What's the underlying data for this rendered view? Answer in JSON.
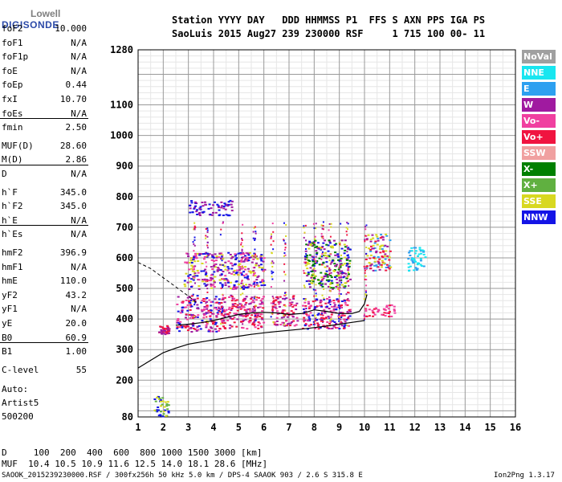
{
  "logo": {
    "line1": "Lowell",
    "line2": "DIGISONDE"
  },
  "header": {
    "line1": "Station YYYY DAY   DDD HHMMSS P1  FFS S AXN PPS IGA PS",
    "line2": "SaoLuis 2015 Aug27 239 230000 RSF     1 715 100 00- 11"
  },
  "params": [
    {
      "name": "foF2",
      "value": "10.000"
    },
    {
      "name": "foF1",
      "value": "N/A"
    },
    {
      "name": "foF1p",
      "value": "N/A"
    },
    {
      "name": "foE",
      "value": "N/A"
    },
    {
      "name": "foEp",
      "value": "0.44"
    },
    {
      "name": "fxI",
      "value": "10.70"
    },
    {
      "name": "foEs",
      "value": "N/A"
    },
    {
      "name": "fmin",
      "value": "2.50"
    },
    {
      "name": "MUF(D)",
      "value": "28.60"
    },
    {
      "name": "M(D)",
      "value": "2.86"
    },
    {
      "name": "D",
      "value": "N/A"
    },
    {
      "name": "h`F",
      "value": "345.0"
    },
    {
      "name": "h`F2",
      "value": "345.0"
    },
    {
      "name": "h`E",
      "value": "N/A"
    },
    {
      "name": "h`Es",
      "value": "N/A"
    },
    {
      "name": "hmF2",
      "value": "396.9"
    },
    {
      "name": "hmF1",
      "value": "N/A"
    },
    {
      "name": "hmE",
      "value": "110.0"
    },
    {
      "name": "yF2",
      "value": "43.2"
    },
    {
      "name": "yF1",
      "value": "N/A"
    },
    {
      "name": "yE",
      "value": "20.0"
    },
    {
      "name": "B0",
      "value": "60.9"
    },
    {
      "name": "B1",
      "value": "1.00"
    },
    {
      "name": "C-level",
      "value": "55"
    }
  ],
  "auto": {
    "line1": "Auto:",
    "line2": "Artist5",
    "line3": "500200"
  },
  "legend": [
    {
      "label": "NoVal",
      "color": "#a0a0a0"
    },
    {
      "label": "NNE",
      "color": "#19e6f0"
    },
    {
      "label": "E",
      "color": "#2da0f0"
    },
    {
      "label": "W",
      "color": "#a01aa0"
    },
    {
      "label": "Vo-",
      "color": "#f040a0"
    },
    {
      "label": "Vo+",
      "color": "#f01440"
    },
    {
      "label": "SSW",
      "color": "#f0a0a0"
    },
    {
      "label": "X-",
      "color": "#008000"
    },
    {
      "label": "X+",
      "color": "#60b040"
    },
    {
      "label": "SSE",
      "color": "#d8d820"
    },
    {
      "label": "NNW",
      "color": "#1414e6"
    }
  ],
  "bottom": {
    "dist_row": "D     100  200  400  600  800 1000 1500 3000 [km]",
    "muf_row": "MUF  10.4 10.5 10.9 11.6 12.5 14.0 18.1 28.6 [MHz]",
    "info": "SAOOK_2015239230000.RSF / 300fx256h 50 kHz 5.0 km / DPS-4 SAAOK 903 / 2.6 S 315.8 E",
    "version": "Ion2Png 1.3.17"
  },
  "chart_data": {
    "type": "scatter",
    "x_ticks": [
      1,
      2,
      3,
      4,
      5,
      6,
      7,
      8,
      9,
      10,
      11,
      12,
      13,
      14,
      15,
      16
    ],
    "y_ticks_major": [
      80,
      200,
      300,
      400,
      500,
      600,
      700,
      800,
      900,
      1000,
      1100,
      1280
    ],
    "xlim": [
      1,
      16
    ],
    "ylim": [
      80,
      1280
    ],
    "grid": true,
    "legend_placement": "right",
    "profile_solid": {
      "x": [
        1.0,
        1.5,
        2.0,
        2.5,
        3.0,
        3.5,
        4.0,
        4.5,
        5.0,
        5.5,
        6.0,
        6.5,
        7.0,
        7.5,
        8.0,
        8.5,
        9.0,
        9.5,
        10.0
      ],
      "y": [
        240,
        265,
        290,
        305,
        318,
        325,
        332,
        338,
        344,
        350,
        355,
        359,
        363,
        367,
        372,
        377,
        383,
        389,
        395
      ]
    },
    "profile_dashed": {
      "x": [
        1.0,
        1.5,
        2.0,
        2.5,
        3.0,
        3.3
      ],
      "y": [
        585,
        565,
        535,
        505,
        475,
        455
      ]
    },
    "trace_curve": {
      "x": [
        2.5,
        3.0,
        3.5,
        4.0,
        4.5,
        5.0,
        5.5,
        6.0,
        6.5,
        7.0,
        7.5,
        8.0,
        8.5,
        9.0,
        9.5,
        9.8,
        10.0,
        10.1
      ],
      "y": [
        380,
        383,
        388,
        395,
        405,
        415,
        420,
        422,
        420,
        415,
        418,
        430,
        425,
        418,
        418,
        425,
        450,
        480
      ]
    },
    "clusters": [
      {
        "x": [
          1.8,
          2.2
        ],
        "y": [
          350,
          380
        ],
        "colors": [
          "#f01440",
          "#a01aa0"
        ]
      },
      {
        "x": [
          2.5,
          4.2
        ],
        "y": [
          360,
          480
        ],
        "colors": [
          "#f01440",
          "#f040a0",
          "#a01aa0",
          "#1414e6"
        ]
      },
      {
        "x": [
          4.2,
          6.0
        ],
        "y": [
          370,
          480
        ],
        "colors": [
          "#f01440",
          "#f040a0",
          "#a01aa0"
        ]
      },
      {
        "x": [
          6.3,
          7.3
        ],
        "y": [
          380,
          480
        ],
        "colors": [
          "#f01440",
          "#f040a0",
          "#a01aa0"
        ]
      },
      {
        "x": [
          7.5,
          9.4
        ],
        "y": [
          370,
          470
        ],
        "colors": [
          "#f01440",
          "#f040a0",
          "#a01aa0",
          "#1414e6"
        ]
      },
      {
        "x": [
          2.8,
          6.0
        ],
        "y": [
          500,
          620
        ],
        "colors": [
          "#a01aa0",
          "#d8d820",
          "#1414e6",
          "#f040a0"
        ]
      },
      {
        "x": [
          7.6,
          9.4
        ],
        "y": [
          500,
          660
        ],
        "colors": [
          "#a01aa0",
          "#d8d820",
          "#1414e6",
          "#008000"
        ]
      },
      {
        "x": [
          10.0,
          11.0
        ],
        "y": [
          560,
          680
        ],
        "colors": [
          "#d8d820",
          "#a01aa0",
          "#f01440",
          "#2da0f0"
        ]
      },
      {
        "x": [
          10.0,
          11.2
        ],
        "y": [
          410,
          450
        ],
        "colors": [
          "#f01440",
          "#f040a0"
        ]
      },
      {
        "x": [
          3.0,
          4.7
        ],
        "y": [
          740,
          790
        ],
        "colors": [
          "#1414e6",
          "#a01aa0"
        ]
      },
      {
        "x": [
          11.7,
          12.4
        ],
        "y": [
          560,
          640
        ],
        "colors": [
          "#19e6f0",
          "#2da0f0"
        ]
      },
      {
        "x": [
          1.6,
          2.2
        ],
        "y": [
          80,
          150
        ],
        "colors": [
          "#60b040",
          "#1414e6",
          "#d8d820"
        ]
      }
    ]
  }
}
